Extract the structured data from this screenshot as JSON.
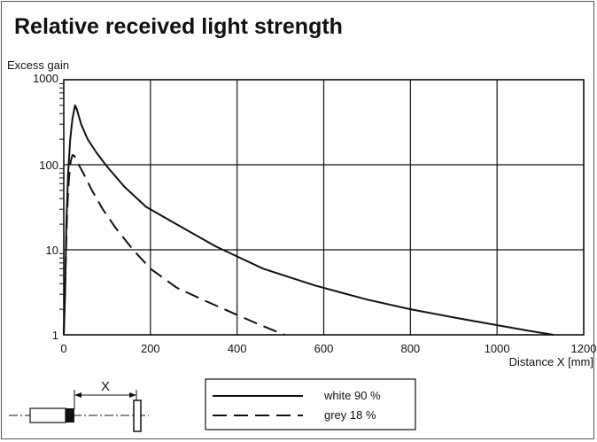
{
  "chart_data": {
    "type": "line",
    "title": "Relative received light strength",
    "ylabel": "Excess gain",
    "xlabel": "Distance X [mm]",
    "xlim": [
      0,
      1200
    ],
    "ylim": [
      1,
      1000
    ],
    "yscale": "log",
    "grid": true,
    "x_ticks": [
      0,
      200,
      400,
      600,
      800,
      1000,
      1200
    ],
    "y_ticks": [
      1,
      10,
      100,
      1000
    ],
    "x_tick_labels": [
      "0",
      "200",
      "400",
      "600",
      "800",
      "1000",
      "1200"
    ],
    "y_tick_labels": [
      "1",
      "10",
      "100",
      "1000"
    ],
    "legend_position": "bottom-center",
    "series": [
      {
        "name": "white 90 %",
        "style": "solid",
        "x": [
          0,
          3,
          6,
          10,
          15,
          20,
          26,
          30,
          40,
          55,
          75,
          100,
          140,
          190,
          260,
          350,
          460,
          580,
          700,
          800,
          900,
          1000,
          1080,
          1130
        ],
        "y": [
          1,
          3,
          20,
          80,
          200,
          350,
          500,
          450,
          300,
          200,
          140,
          95,
          55,
          32,
          20,
          11,
          6,
          3.8,
          2.6,
          2.0,
          1.6,
          1.3,
          1.1,
          1.0
        ]
      },
      {
        "name": "grey 18 %",
        "style": "dashed",
        "x": [
          0,
          4,
          8,
          12,
          16,
          20,
          24,
          30,
          45,
          65,
          90,
          120,
          160,
          200,
          260,
          320,
          380,
          440,
          480,
          510
        ],
        "y": [
          1,
          6,
          30,
          70,
          110,
          130,
          128,
          110,
          80,
          50,
          30,
          18,
          10,
          6,
          3.6,
          2.6,
          1.9,
          1.4,
          1.15,
          1.0
        ]
      }
    ]
  },
  "diagram": {
    "distance_label": "X"
  }
}
